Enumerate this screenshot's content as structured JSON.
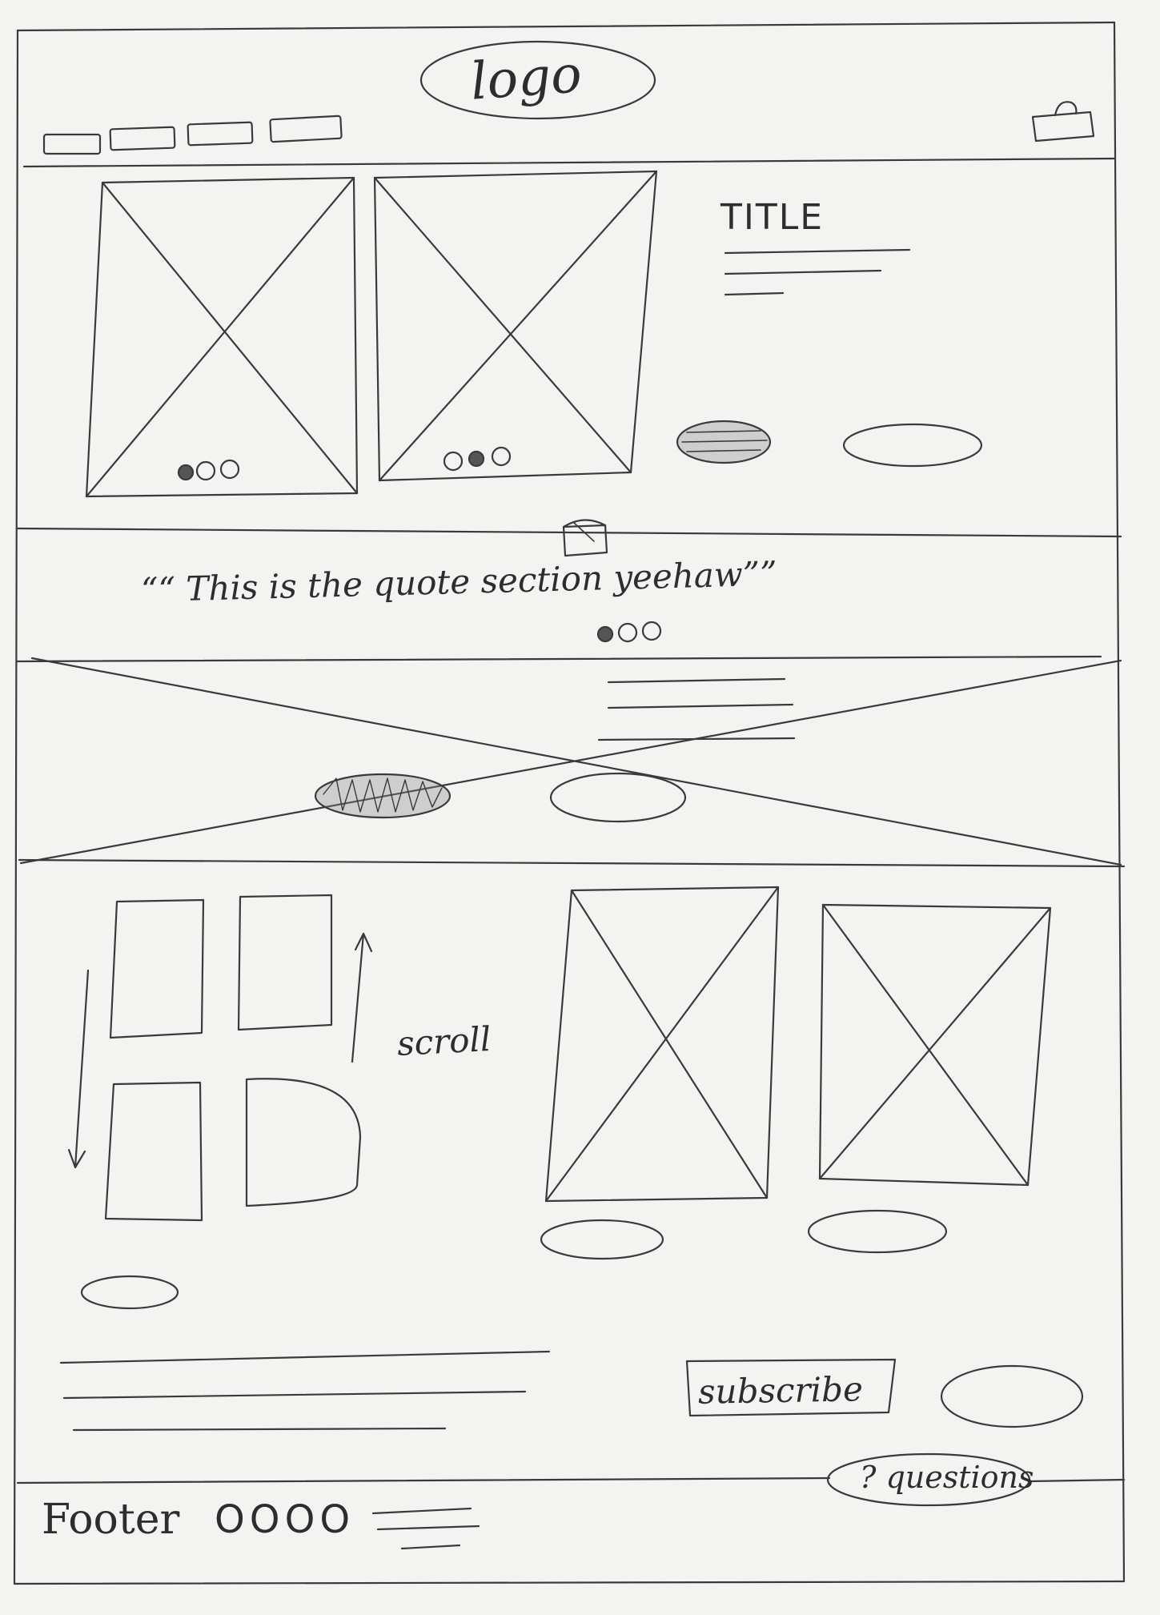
{
  "header": {
    "logo_text": "logo",
    "nav_items": [
      "",
      "",
      "",
      ""
    ],
    "cart_icon": "bag-icon"
  },
  "hero": {
    "title": "TITLE",
    "image_placeholders": 2,
    "carousel_dots": [
      "filled",
      "empty",
      "empty"
    ],
    "buttons": [
      "primary-filled",
      "secondary-outline"
    ]
  },
  "quote": {
    "icon": "cake-icon",
    "text": "““ This is the quote section yeehaw””",
    "dots": [
      "filled",
      "empty",
      "empty"
    ]
  },
  "showcase": {
    "text_lines": 3,
    "buttons": [
      "primary-filled",
      "secondary-outline"
    ]
  },
  "gallery": {
    "scroll_label": "scroll",
    "tiles": 4,
    "products": 2
  },
  "subscribe": {
    "label": "subscribe",
    "questions_label": "? questions"
  },
  "footer": {
    "label": "Footer",
    "dots": "OOOO"
  }
}
